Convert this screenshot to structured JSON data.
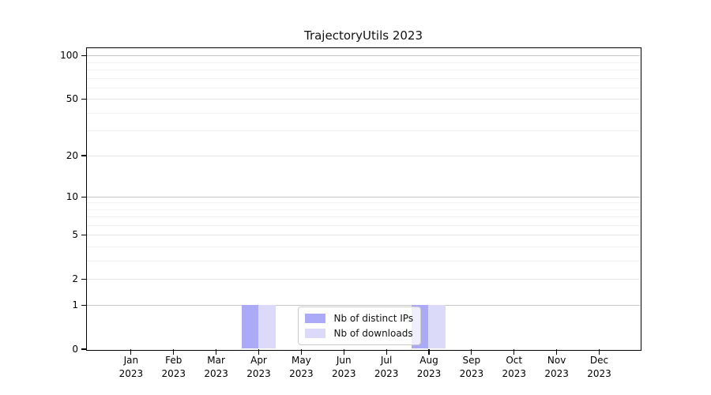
{
  "chart_data": {
    "type": "bar",
    "title": "TrajectoryUtils 2023",
    "categories": [
      "Jan 2023",
      "Feb 2023",
      "Mar 2023",
      "Apr 2023",
      "May 2023",
      "Jun 2023",
      "Jul 2023",
      "Aug 2023",
      "Sep 2023",
      "Oct 2023",
      "Nov 2023",
      "Dec 2023"
    ],
    "x_tick_labels": [
      [
        "Jan",
        "2023"
      ],
      [
        "Feb",
        "2023"
      ],
      [
        "Mar",
        "2023"
      ],
      [
        "Apr",
        "2023"
      ],
      [
        "May",
        "2023"
      ],
      [
        "Jun",
        "2023"
      ],
      [
        "Jul",
        "2023"
      ],
      [
        "Aug",
        "2023"
      ],
      [
        "Sep",
        "2023"
      ],
      [
        "Oct",
        "2023"
      ],
      [
        "Nov",
        "2023"
      ],
      [
        "Dec",
        "2023"
      ]
    ],
    "series": [
      {
        "name": "Nb of distinct IPs",
        "color": "#aaaaf7",
        "values": [
          0,
          0,
          0,
          1,
          0,
          0,
          0,
          1,
          0,
          0,
          0,
          0
        ]
      },
      {
        "name": "Nb of downloads",
        "color": "#dbdbf9",
        "values": [
          0,
          0,
          0,
          1,
          0,
          0,
          0,
          1,
          0,
          0,
          0,
          0
        ]
      }
    ],
    "yscale": "log1p",
    "ylim": [
      0,
      113
    ],
    "y_major_ticks": [
      0,
      1,
      2,
      5,
      10,
      20,
      50,
      100
    ],
    "y_minor_gridlines": [
      3,
      4,
      6,
      7,
      8,
      9,
      30,
      40,
      60,
      70,
      80,
      90
    ],
    "grid": true,
    "legend_position": "lower-center",
    "colors": {
      "spine": "#000000",
      "grid_major_pow10": "#c6c6c6",
      "grid_major": "#e4e4e4",
      "grid_minor": "#f1f1f1"
    }
  }
}
